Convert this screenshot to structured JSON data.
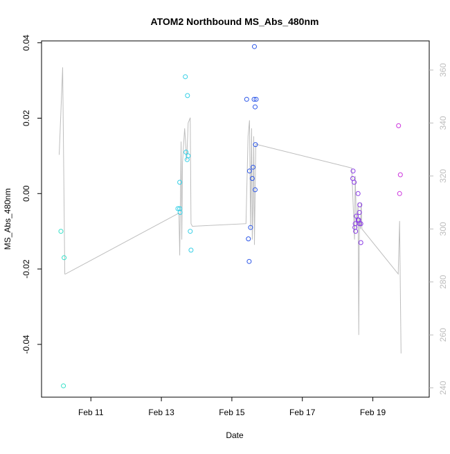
{
  "chart_data": {
    "type": "scatter",
    "title": "ATOM2 Northbound MS_Abs_480nm",
    "xlabel": "Date",
    "ylabel": "MS_Abs_480nm",
    "x_ticks": [
      "Feb 11",
      "Feb 13",
      "Feb 15",
      "Feb 17",
      "Feb 19"
    ],
    "x_tick_values": [
      11,
      13,
      15,
      17,
      19
    ],
    "xlim": [
      9.6,
      20.6
    ],
    "ylim": [
      -0.054,
      0.0405
    ],
    "y_ticks": [
      "-0.04",
      "-0.02",
      "0.00",
      "0.02",
      "0.04"
    ],
    "y_tick_values": [
      -0.04,
      -0.02,
      0.0,
      0.02,
      0.04
    ],
    "y2lim": [
      236.5,
      371
    ],
    "y2_ticks": [
      "240",
      "260",
      "280",
      "300",
      "320",
      "340",
      "360"
    ],
    "y2_tick_values": [
      240,
      260,
      280,
      300,
      320,
      340,
      360
    ],
    "colors": {
      "axis": "#000000",
      "secondary_axis": "#bdbdbd",
      "line": "#bdbdbd"
    },
    "points": [
      {
        "x": 10.15,
        "y": -0.01,
        "color": "#33e0c8"
      },
      {
        "x": 10.24,
        "y": -0.017,
        "color": "#33e0c8"
      },
      {
        "x": 10.22,
        "y": -0.051,
        "color": "#33e0c8"
      },
      {
        "x": 13.47,
        "y": -0.004,
        "color": "#33cfe6"
      },
      {
        "x": 13.52,
        "y": -0.004,
        "color": "#33cfe6"
      },
      {
        "x": 13.53,
        "y": -0.005,
        "color": "#33cfe6"
      },
      {
        "x": 13.52,
        "y": 0.003,
        "color": "#33cfe6"
      },
      {
        "x": 13.68,
        "y": 0.031,
        "color": "#33cfe6"
      },
      {
        "x": 13.74,
        "y": 0.026,
        "color": "#33cfe6"
      },
      {
        "x": 13.7,
        "y": 0.011,
        "color": "#33cfe6"
      },
      {
        "x": 13.76,
        "y": 0.01,
        "color": "#33cfe6"
      },
      {
        "x": 13.73,
        "y": 0.009,
        "color": "#33cfe6"
      },
      {
        "x": 13.82,
        "y": -0.01,
        "color": "#33cfe6"
      },
      {
        "x": 13.84,
        "y": -0.015,
        "color": "#33cfe6"
      },
      {
        "x": 15.42,
        "y": 0.025,
        "color": "#2a55e8"
      },
      {
        "x": 15.64,
        "y": 0.039,
        "color": "#2a55e8"
      },
      {
        "x": 15.63,
        "y": 0.025,
        "color": "#2a55e8"
      },
      {
        "x": 15.69,
        "y": 0.025,
        "color": "#2a55e8"
      },
      {
        "x": 15.66,
        "y": 0.023,
        "color": "#2a55e8"
      },
      {
        "x": 15.67,
        "y": 0.013,
        "color": "#2a55e8"
      },
      {
        "x": 15.6,
        "y": 0.007,
        "color": "#2a55e8"
      },
      {
        "x": 15.5,
        "y": 0.006,
        "color": "#2a55e8"
      },
      {
        "x": 15.58,
        "y": 0.004,
        "color": "#2a55e8"
      },
      {
        "x": 15.66,
        "y": 0.001,
        "color": "#2a55e8"
      },
      {
        "x": 15.53,
        "y": -0.009,
        "color": "#2a55e8"
      },
      {
        "x": 15.47,
        "y": -0.012,
        "color": "#2a55e8"
      },
      {
        "x": 15.49,
        "y": -0.018,
        "color": "#2a55e8"
      },
      {
        "x": 18.44,
        "y": 0.006,
        "color": "#8a3ae6"
      },
      {
        "x": 18.43,
        "y": 0.004,
        "color": "#8a3ae6"
      },
      {
        "x": 18.47,
        "y": 0.003,
        "color": "#8a3ae6"
      },
      {
        "x": 18.58,
        "y": 0.0,
        "color": "#8a3ae6"
      },
      {
        "x": 18.63,
        "y": -0.003,
        "color": "#8a3ae6"
      },
      {
        "x": 18.62,
        "y": -0.005,
        "color": "#8a3ae6"
      },
      {
        "x": 18.53,
        "y": -0.006,
        "color": "#8a3ae6"
      },
      {
        "x": 18.58,
        "y": -0.007,
        "color": "#8a3ae6"
      },
      {
        "x": 18.6,
        "y": -0.007,
        "color": "#8a3ae6"
      },
      {
        "x": 18.5,
        "y": -0.008,
        "color": "#8a3ae6"
      },
      {
        "x": 18.62,
        "y": -0.008,
        "color": "#8a3ae6"
      },
      {
        "x": 18.66,
        "y": -0.008,
        "color": "#8a3ae6"
      },
      {
        "x": 18.49,
        "y": -0.009,
        "color": "#8a3ae6"
      },
      {
        "x": 18.51,
        "y": -0.01,
        "color": "#8a3ae6"
      },
      {
        "x": 18.66,
        "y": -0.013,
        "color": "#8a3ae6"
      },
      {
        "x": 19.73,
        "y": 0.018,
        "color": "#cc33dd"
      },
      {
        "x": 19.78,
        "y": 0.005,
        "color": "#cc33dd"
      },
      {
        "x": 19.76,
        "y": 0.0,
        "color": "#cc33dd"
      }
    ],
    "line_x": [
      10.1,
      10.2,
      10.26,
      10.28,
      13.5,
      13.52,
      13.56,
      13.58,
      13.6,
      13.66,
      13.72,
      13.76,
      13.82,
      13.84,
      13.88,
      15.4,
      15.46,
      15.5,
      15.53,
      15.56,
      15.58,
      15.6,
      15.62,
      15.64,
      15.68,
      18.4,
      18.44,
      18.48,
      18.5,
      18.54,
      18.58,
      18.6,
      18.62,
      18.65,
      18.67,
      18.69,
      19.72,
      19.76,
      19.8
    ],
    "line_y2": [
      328,
      361,
      283,
      283,
      306,
      290,
      333,
      296,
      325,
      338,
      326,
      340,
      342,
      302,
      301,
      302,
      335,
      341,
      300,
      338,
      296,
      310,
      335,
      294,
      332,
      323,
      310,
      296,
      320,
      300,
      310,
      260,
      304,
      300,
      310,
      300,
      283,
      303,
      253
    ]
  }
}
